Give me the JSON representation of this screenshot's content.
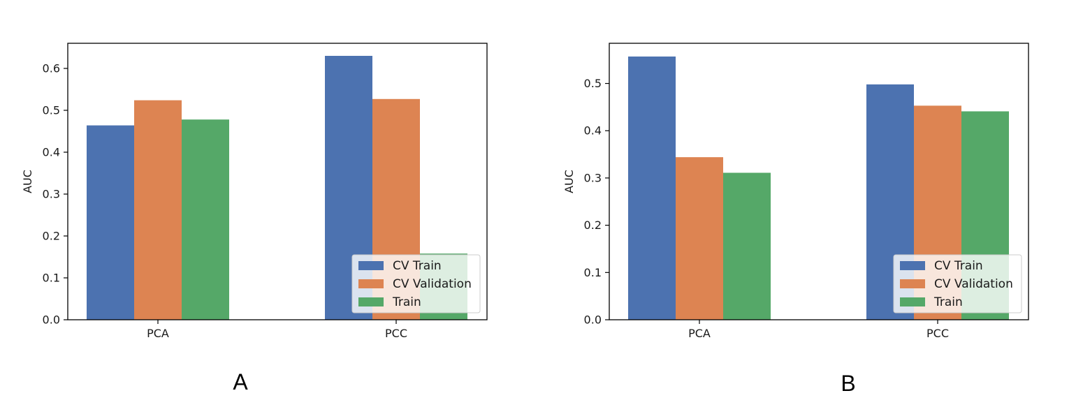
{
  "colors": {
    "cv_train": "#4c72b0",
    "cv_validation": "#dd8452",
    "train": "#55a868"
  },
  "chart_data": [
    {
      "type": "bar",
      "panel_label": "A",
      "ylabel": "AUC",
      "xlabel": "",
      "categories": [
        "PCA",
        "PCC"
      ],
      "ylim": [
        0,
        0.66
      ],
      "yticks": [
        0.0,
        0.1,
        0.2,
        0.3,
        0.4,
        0.5,
        0.6
      ],
      "ytick_labels": [
        "0.0",
        "0.1",
        "0.2",
        "0.3",
        "0.4",
        "0.5",
        "0.6"
      ],
      "grid": false,
      "legend_position": "lower-right",
      "series": [
        {
          "name": "CV Train",
          "values": [
            0.464,
            0.63
          ]
        },
        {
          "name": "CV Validation",
          "values": [
            0.524,
            0.527
          ]
        },
        {
          "name": "Train",
          "values": [
            0.478,
            0.158
          ]
        }
      ]
    },
    {
      "type": "bar",
      "panel_label": "B",
      "ylabel": "AUC",
      "xlabel": "",
      "categories": [
        "PCA",
        "PCC"
      ],
      "ylim": [
        0,
        0.585
      ],
      "yticks": [
        0.0,
        0.1,
        0.2,
        0.3,
        0.4,
        0.5
      ],
      "ytick_labels": [
        "0.0",
        "0.1",
        "0.2",
        "0.3",
        "0.4",
        "0.5"
      ],
      "grid": false,
      "legend_position": "lower-right",
      "series": [
        {
          "name": "CV Train",
          "values": [
            0.557,
            0.498
          ]
        },
        {
          "name": "CV Validation",
          "values": [
            0.344,
            0.453
          ]
        },
        {
          "name": "Train",
          "values": [
            0.311,
            0.441
          ]
        }
      ]
    }
  ]
}
